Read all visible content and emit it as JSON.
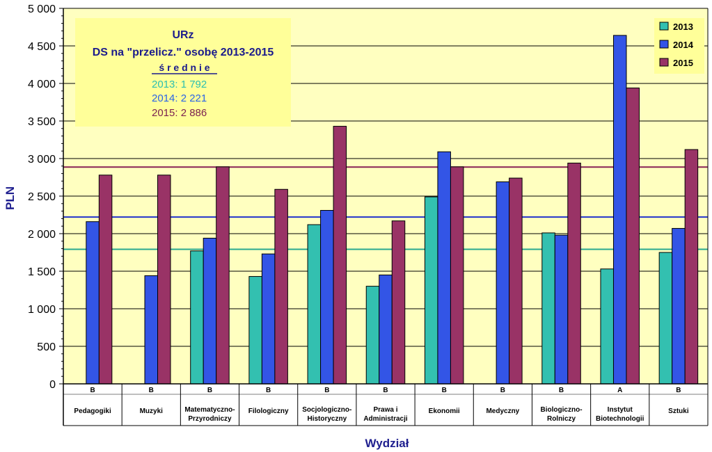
{
  "chart_data": {
    "type": "bar",
    "title": "URz",
    "subtitle": "DS na \"przelicz.\" osobę 2013-2015",
    "xlabel": "Wydział",
    "ylabel": "PLN",
    "ylim": [
      0,
      5000
    ],
    "yticks": [
      "0",
      "500",
      "1 000",
      "1 500",
      "2 000",
      "2 500",
      "3 000",
      "3 500",
      "4 000",
      "4 500",
      "5 000"
    ],
    "ytick_values": [
      0,
      500,
      1000,
      1500,
      2000,
      2500,
      3000,
      3500,
      4000,
      4500,
      5000
    ],
    "categories": [
      "Pedagogiki",
      "Muzyki",
      "Matematyczno-Przyrodniczy",
      "Filologiczny",
      "Socjologiczno-Historyczny",
      "Prawa i Administracji",
      "Ekonomii",
      "Medyczny",
      "Biologiczno-Rolniczy",
      "Instytut Biotechnologii",
      "Sztuki"
    ],
    "category_lines": [
      [
        "Pedagogiki"
      ],
      [
        "Muzyki"
      ],
      [
        "Matematyczno-",
        "Przyrodniczy"
      ],
      [
        "Filologiczny"
      ],
      [
        "Socjologiczno-",
        "Historyczny"
      ],
      [
        "Prawa i",
        "Administracji"
      ],
      [
        "Ekonomii"
      ],
      [
        "Medyczny"
      ],
      [
        "Biologiczno-",
        "Rolniczy"
      ],
      [
        "Instytut",
        "Biotechnologii"
      ],
      [
        "Sztuki"
      ]
    ],
    "groups": [
      "B",
      "B",
      "B",
      "B",
      "B",
      "B",
      "B",
      "B",
      "B",
      "A",
      "B"
    ],
    "series": [
      {
        "name": "2013",
        "color": "#33c0b0",
        "values": [
          null,
          null,
          1770,
          1430,
          2120,
          1300,
          2490,
          null,
          2010,
          1530,
          1750
        ]
      },
      {
        "name": "2014",
        "color": "#3355e6",
        "values": [
          2160,
          1440,
          1940,
          1730,
          2310,
          1450,
          3090,
          2690,
          1980,
          4640,
          2070
        ]
      },
      {
        "name": "2015",
        "color": "#993366",
        "values": [
          2780,
          2780,
          2890,
          2590,
          3430,
          2170,
          2890,
          2740,
          2940,
          3940,
          3120
        ]
      }
    ],
    "reference_lines": [
      {
        "label": "2013",
        "value": 1792,
        "color": "#2aa88f"
      },
      {
        "label": "2014",
        "value": 2221,
        "color": "#2233cc"
      },
      {
        "label": "2015",
        "value": 2886,
        "color": "#882255"
      }
    ],
    "annotation": {
      "title": "URz",
      "subtitle": "DS na \"przelicz.\" osobę 2013-2015",
      "heading": "ś r e d n i e",
      "lines": [
        {
          "text": "2013:  1 792",
          "color": "#2bbfb0"
        },
        {
          "text": "2014:  2 221",
          "color": "#2a64e6"
        },
        {
          "text": "2015:  2 886",
          "color": "#7a1f50"
        }
      ]
    },
    "legend": {
      "position": "top-right",
      "labels": [
        "2013",
        "2014",
        "2015"
      ]
    },
    "grid": true,
    "plot_background": "#ffffc0"
  }
}
